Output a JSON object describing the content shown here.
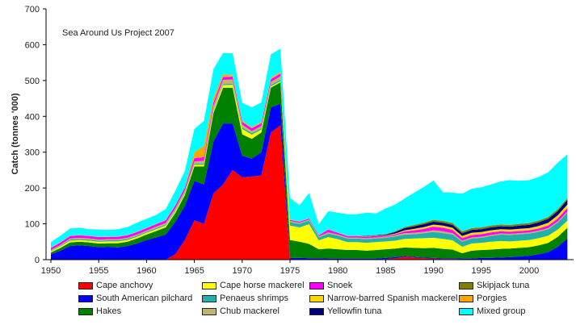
{
  "chart_data": {
    "type": "area",
    "stacked": true,
    "title": "",
    "annotation": "Sea Around Us Project 2007",
    "xlabel": "",
    "ylabel": "Catch (tonnes '000)",
    "xlim": [
      1950,
      2004
    ],
    "ylim": [
      0,
      700
    ],
    "x_ticks": [
      1950,
      1955,
      1960,
      1965,
      1970,
      1975,
      1980,
      1985,
      1990,
      1995,
      2000
    ],
    "y_ticks": [
      0,
      100,
      200,
      300,
      400,
      500,
      600,
      700
    ],
    "grid": false,
    "legend_position": "bottom",
    "x": [
      1950,
      1951,
      1952,
      1953,
      1954,
      1955,
      1956,
      1957,
      1958,
      1959,
      1960,
      1961,
      1962,
      1963,
      1964,
      1965,
      1966,
      1967,
      1968,
      1969,
      1970,
      1971,
      1972,
      1973,
      1974,
      1975,
      1976,
      1977,
      1978,
      1979,
      1980,
      1981,
      1982,
      1983,
      1984,
      1985,
      1986,
      1987,
      1988,
      1989,
      1990,
      1991,
      1992,
      1993,
      1994,
      1995,
      1996,
      1997,
      1998,
      1999,
      2000,
      2001,
      2002,
      2003,
      2004
    ],
    "series": [
      {
        "name": "Cape anchovy",
        "color": "#ff0000",
        "values": [
          0,
          0,
          0,
          0,
          0,
          0,
          0,
          0,
          0,
          0,
          0,
          0,
          0,
          15,
          55,
          110,
          100,
          185,
          210,
          250,
          230,
          232,
          235,
          355,
          375,
          0,
          0,
          0,
          0,
          0,
          0,
          0,
          0,
          0,
          0,
          2,
          4,
          8,
          6,
          4,
          3,
          2,
          2,
          1,
          1,
          1,
          1,
          1,
          1,
          1,
          1,
          1,
          1,
          1,
          1
        ]
      },
      {
        "name": "South American pilchard",
        "color": "#0000ff",
        "values": [
          15,
          25,
          38,
          40,
          38,
          35,
          36,
          34,
          38,
          45,
          55,
          62,
          70,
          90,
          95,
          110,
          110,
          145,
          170,
          130,
          60,
          50,
          65,
          70,
          60,
          5,
          5,
          4,
          4,
          3,
          3,
          3,
          3,
          3,
          3,
          3,
          3,
          2,
          2,
          2,
          2,
          2,
          2,
          2,
          2,
          4,
          4,
          5,
          6,
          8,
          10,
          14,
          20,
          35,
          58
        ]
      },
      {
        "name": "Hakes",
        "color": "#008000",
        "values": [
          5,
          8,
          10,
          10,
          10,
          10,
          10,
          12,
          12,
          14,
          15,
          18,
          20,
          25,
          30,
          40,
          50,
          80,
          100,
          100,
          60,
          55,
          55,
          55,
          60,
          50,
          45,
          40,
          25,
          28,
          26,
          24,
          24,
          22,
          24,
          24,
          24,
          24,
          25,
          26,
          28,
          26,
          24,
          15,
          22,
          22,
          23,
          24,
          24,
          24,
          24,
          25,
          26,
          28,
          30
        ]
      },
      {
        "name": "Cape horse mackerel",
        "color": "#ffff00",
        "values": [
          3,
          4,
          5,
          5,
          5,
          5,
          5,
          5,
          5,
          5,
          5,
          5,
          5,
          5,
          5,
          5,
          5,
          6,
          7,
          8,
          15,
          12,
          8,
          4,
          3,
          40,
          40,
          55,
          25,
          32,
          28,
          22,
          22,
          22,
          22,
          22,
          22,
          24,
          26,
          28,
          28,
          28,
          26,
          18,
          20,
          20,
          22,
          22,
          20,
          20,
          20,
          20,
          20,
          20,
          20
        ]
      },
      {
        "name": "Penaeus shrimps",
        "color": "#20b2aa",
        "values": [
          2,
          2,
          3,
          3,
          3,
          3,
          3,
          3,
          3,
          3,
          3,
          3,
          3,
          3,
          3,
          3,
          3,
          3,
          3,
          3,
          4,
          4,
          4,
          4,
          4,
          10,
          10,
          10,
          8,
          10,
          10,
          10,
          10,
          10,
          10,
          10,
          12,
          12,
          12,
          14,
          16,
          16,
          16,
          14,
          14,
          14,
          16,
          18,
          18,
          18,
          18,
          18,
          18,
          20,
          22
        ]
      },
      {
        "name": "Chub mackerel",
        "color": "#bdb76b",
        "values": [
          2,
          2,
          3,
          3,
          3,
          3,
          3,
          3,
          3,
          3,
          3,
          4,
          4,
          5,
          5,
          6,
          8,
          10,
          12,
          12,
          8,
          6,
          6,
          8,
          10,
          3,
          3,
          3,
          3,
          3,
          3,
          3,
          3,
          3,
          3,
          3,
          3,
          4,
          4,
          4,
          5,
          5,
          4,
          3,
          3,
          3,
          3,
          3,
          3,
          3,
          3,
          3,
          3,
          3,
          3
        ]
      },
      {
        "name": "Snoek",
        "color": "#ff00ff",
        "values": [
          6,
          7,
          7,
          7,
          7,
          7,
          7,
          7,
          7,
          7,
          7,
          7,
          8,
          8,
          8,
          10,
          10,
          10,
          8,
          8,
          8,
          8,
          8,
          8,
          8,
          3,
          3,
          3,
          3,
          8,
          5,
          4,
          4,
          4,
          4,
          3,
          3,
          5,
          7,
          8,
          10,
          10,
          9,
          7,
          7,
          7,
          7,
          6,
          6,
          6,
          6,
          6,
          7,
          8,
          10
        ]
      },
      {
        "name": "Narrow-barred Spanish mackerel",
        "color": "#ffd700",
        "values": [
          1,
          1,
          1,
          1,
          1,
          1,
          1,
          1,
          1,
          1,
          1,
          1,
          1,
          1,
          1,
          1,
          1,
          1,
          1,
          1,
          1,
          1,
          1,
          1,
          1,
          1,
          1,
          1,
          1,
          1,
          1,
          1,
          1,
          1,
          1,
          1,
          2,
          3,
          4,
          5,
          6,
          6,
          6,
          6,
          6,
          6,
          6,
          6,
          6,
          6,
          6,
          7,
          8,
          9,
          10
        ]
      },
      {
        "name": "Yellowfin tuna",
        "color": "#000080",
        "values": [
          0,
          0,
          0,
          0,
          0,
          0,
          0,
          0,
          0,
          0,
          0,
          0,
          0,
          0,
          0,
          0,
          0,
          0,
          0,
          0,
          0,
          0,
          0,
          0,
          0,
          0,
          0,
          0,
          0,
          0,
          0,
          0,
          0,
          1,
          1,
          2,
          4,
          6,
          7,
          8,
          8,
          8,
          8,
          8,
          8,
          8,
          8,
          8,
          8,
          9,
          9,
          10,
          11,
          12,
          13
        ]
      },
      {
        "name": "Skipjack tuna",
        "color": "#808000",
        "values": [
          0,
          0,
          0,
          0,
          0,
          0,
          0,
          0,
          0,
          0,
          0,
          0,
          0,
          0,
          0,
          0,
          0,
          0,
          0,
          0,
          0,
          0,
          0,
          0,
          0,
          0,
          0,
          0,
          0,
          0,
          0,
          0,
          0,
          0,
          1,
          1,
          2,
          3,
          4,
          4,
          5,
          5,
          5,
          5,
          5,
          5,
          5,
          5,
          5,
          5,
          5,
          5,
          5,
          5,
          5
        ]
      },
      {
        "name": "Porgies",
        "color": "#ffa500",
        "values": [
          0,
          0,
          0,
          0,
          0,
          0,
          0,
          0,
          0,
          0,
          0,
          0,
          0,
          0,
          0,
          15,
          30,
          12,
          6,
          4,
          2,
          2,
          2,
          3,
          3,
          0,
          0,
          0,
          0,
          0,
          0,
          0,
          0,
          0,
          0,
          0,
          0,
          0,
          0,
          0,
          0,
          0,
          0,
          0,
          0,
          0,
          0,
          0,
          0,
          0,
          0,
          0,
          0,
          0,
          0
        ]
      },
      {
        "name": "Mixed group",
        "color": "#00ffff",
        "values": [
          15,
          18,
          20,
          20,
          18,
          20,
          18,
          20,
          22,
          25,
          25,
          25,
          30,
          40,
          45,
          65,
          70,
          80,
          60,
          60,
          50,
          55,
          55,
          65,
          65,
          60,
          45,
          70,
          30,
          50,
          55,
          60,
          60,
          65,
          60,
          72,
          75,
          80,
          90,
          100,
          110,
          80,
          85,
          105,
          110,
          112,
          115,
          120,
          125,
          120,
          120,
          122,
          125,
          130,
          122
        ]
      }
    ]
  }
}
